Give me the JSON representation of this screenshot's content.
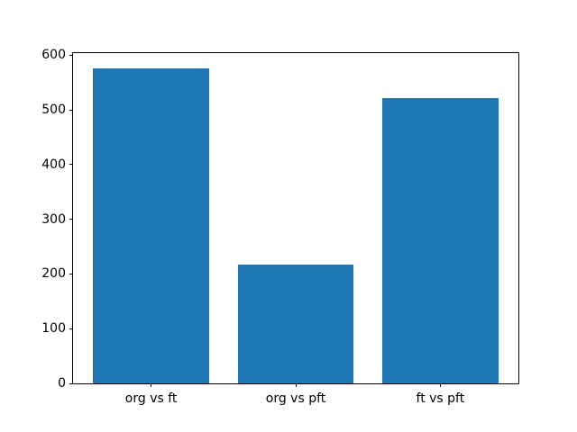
{
  "chart_data": {
    "type": "bar",
    "categories": [
      "org vs ft",
      "org vs pft",
      "ft vs pft"
    ],
    "values": [
      575,
      218,
      521
    ],
    "title": "",
    "xlabel": "",
    "ylabel": "",
    "ylim": [
      0,
      603.75
    ],
    "yticks": [
      0,
      100,
      200,
      300,
      400,
      500,
      600
    ],
    "ytick_labels": [
      "0",
      "100",
      "200",
      "300",
      "400",
      "500",
      "600"
    ],
    "grid": false,
    "legend": null,
    "bar_width_fraction": 0.8,
    "x_axis_span": 3.08,
    "x_axis_offset": 0.54
  },
  "colors": {
    "bar": "#1f77b4",
    "background": "#ffffff",
    "axis": "#000000"
  }
}
